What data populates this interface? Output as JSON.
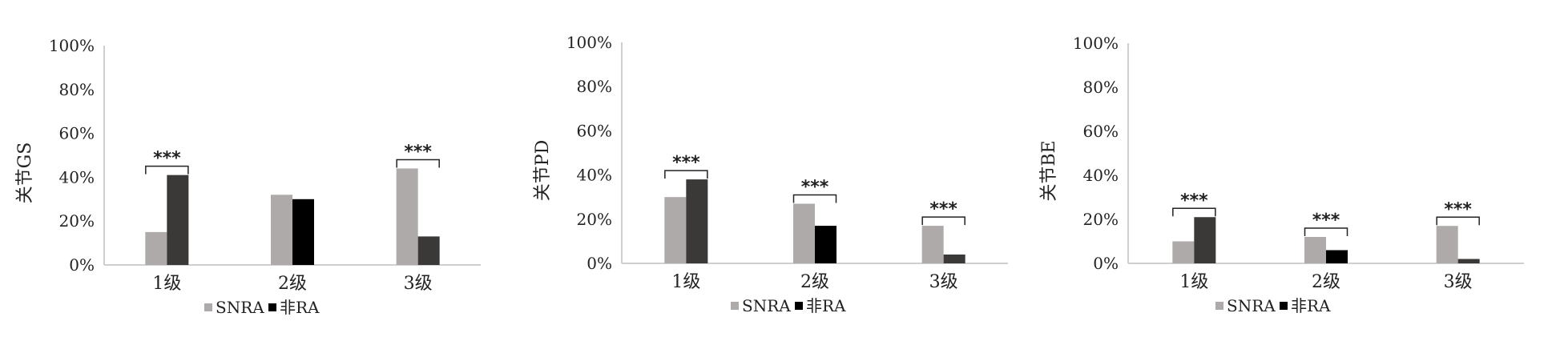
{
  "chart_data": [
    {
      "type": "bar",
      "title": "",
      "ylabel": "关节GS",
      "xlabel": "",
      "ylim": [
        0,
        100
      ],
      "yticks": [
        "0%",
        "20%",
        "40%",
        "60%",
        "80%",
        "100%"
      ],
      "categories": [
        "1级",
        "2级",
        "3级"
      ],
      "series": [
        {
          "name": "SNRA",
          "values": [
            15,
            32,
            44
          ]
        },
        {
          "name": "非RA",
          "values": [
            41,
            30,
            13
          ]
        }
      ],
      "significance": [
        "***",
        "",
        "***"
      ],
      "grid": false,
      "legend_position": "bottom"
    },
    {
      "type": "bar",
      "title": "",
      "ylabel": "关节PD",
      "xlabel": "",
      "ylim": [
        0,
        100
      ],
      "yticks": [
        "0%",
        "20%",
        "40%",
        "60%",
        "80%",
        "100%"
      ],
      "categories": [
        "1级",
        "2级",
        "3级"
      ],
      "series": [
        {
          "name": "SNRA",
          "values": [
            30,
            27,
            17
          ]
        },
        {
          "name": "非RA",
          "values": [
            38,
            17,
            4
          ]
        }
      ],
      "significance": [
        "***",
        "***",
        "***"
      ],
      "grid": false,
      "legend_position": "bottom"
    },
    {
      "type": "bar",
      "title": "",
      "ylabel": "关节BE",
      "xlabel": "",
      "ylim": [
        0,
        100
      ],
      "yticks": [
        "0%",
        "20%",
        "40%",
        "60%",
        "80%",
        "100%"
      ],
      "categories": [
        "1级",
        "2级",
        "3级"
      ],
      "series": [
        {
          "name": "SNRA",
          "values": [
            10,
            12,
            17
          ]
        },
        {
          "name": "非RA",
          "values": [
            21,
            6,
            2
          ]
        }
      ],
      "significance": [
        "***",
        "***",
        "***"
      ],
      "grid": false,
      "legend_position": "bottom"
    }
  ],
  "colors": {
    "SNRA": "#aeaaaa",
    "non_ra_panel1": [
      "#3b3838",
      "#000000",
      "#3b3838"
    ],
    "non_ra_panel2": [
      "#3b3838",
      "#000000",
      "#3b3838"
    ],
    "non_ra_panel3": [
      "#3b3838",
      "#000000",
      "#3b3838"
    ],
    "axis": "#bfbfbf",
    "legend_non_ra": "#000000"
  }
}
